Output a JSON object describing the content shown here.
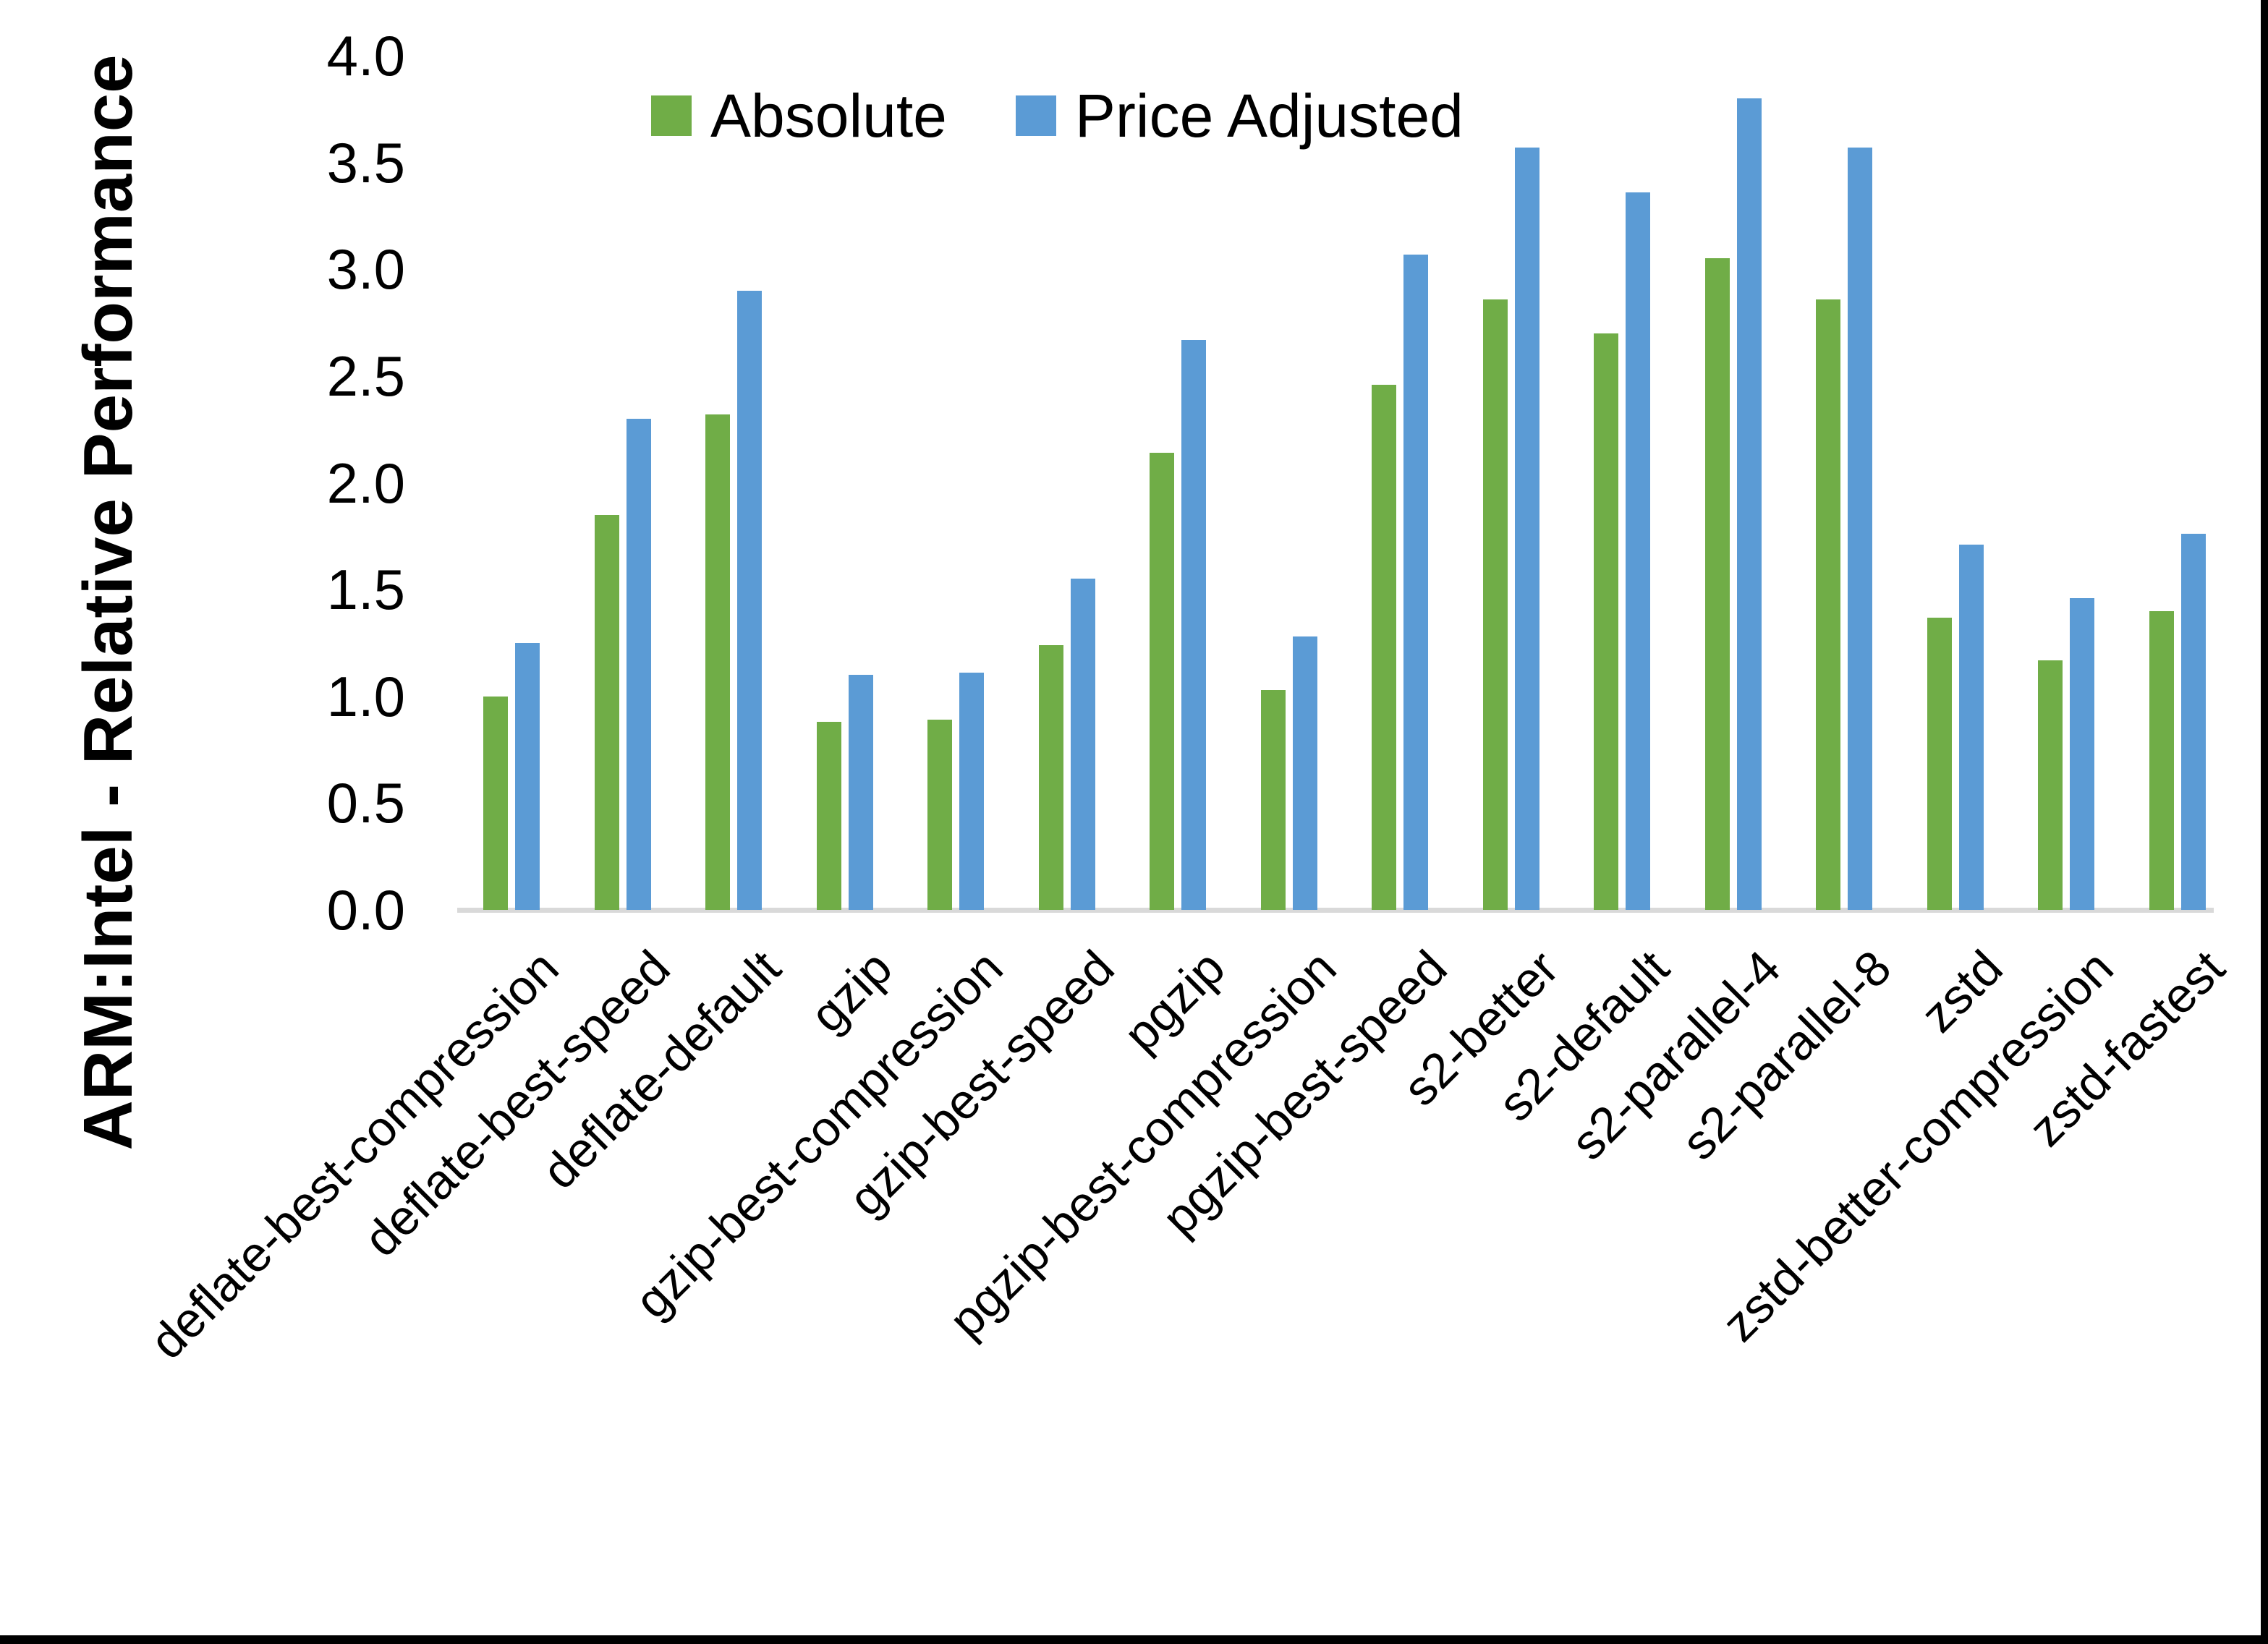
{
  "chart_data": {
    "type": "bar",
    "title": "",
    "xlabel": "",
    "ylabel": "ARM:Intel - Relative Performance",
    "ylim": [
      0.0,
      4.0
    ],
    "ytick_step": 0.5,
    "ytick_labels": [
      "4.0",
      "3.5",
      "3.0",
      "2.5",
      "2.0",
      "1.5",
      "1.0",
      "0.5",
      "0.0"
    ],
    "grid": "off",
    "legend_position": "top-center",
    "categories": [
      "deflate-best-compression",
      "deflate-best-speed",
      "deflate-default",
      "gzip",
      "gzip-best-compression",
      "gzip-best-speed",
      "pgzip",
      "pgzip-best-compression",
      "pgzip-best-speed",
      "s2-better",
      "s2-default",
      "s2-parallel-4",
      "s2-parallel-8",
      "zstd",
      "zstd-better-compression",
      "zstd-fastest"
    ],
    "series": [
      {
        "name": "Absolute",
        "color": "#70AD47",
        "values": [
          1.0,
          1.85,
          2.32,
          0.88,
          0.89,
          1.24,
          2.14,
          1.03,
          2.46,
          2.86,
          2.7,
          3.05,
          2.86,
          1.37,
          1.17,
          1.4
        ]
      },
      {
        "name": "Price Adjusted",
        "color": "#5B9BD5",
        "values": [
          1.25,
          2.3,
          2.9,
          1.1,
          1.11,
          1.55,
          2.67,
          1.28,
          3.07,
          3.57,
          3.36,
          3.8,
          3.57,
          1.71,
          1.46,
          1.76
        ]
      }
    ]
  },
  "y_axis": {
    "title": "ARM:Intel - Relative Performance"
  },
  "legend": {
    "items": [
      {
        "label": "Absolute",
        "color": "#70AD47"
      },
      {
        "label": "Price Adjusted",
        "color": "#5B9BD5"
      }
    ]
  }
}
